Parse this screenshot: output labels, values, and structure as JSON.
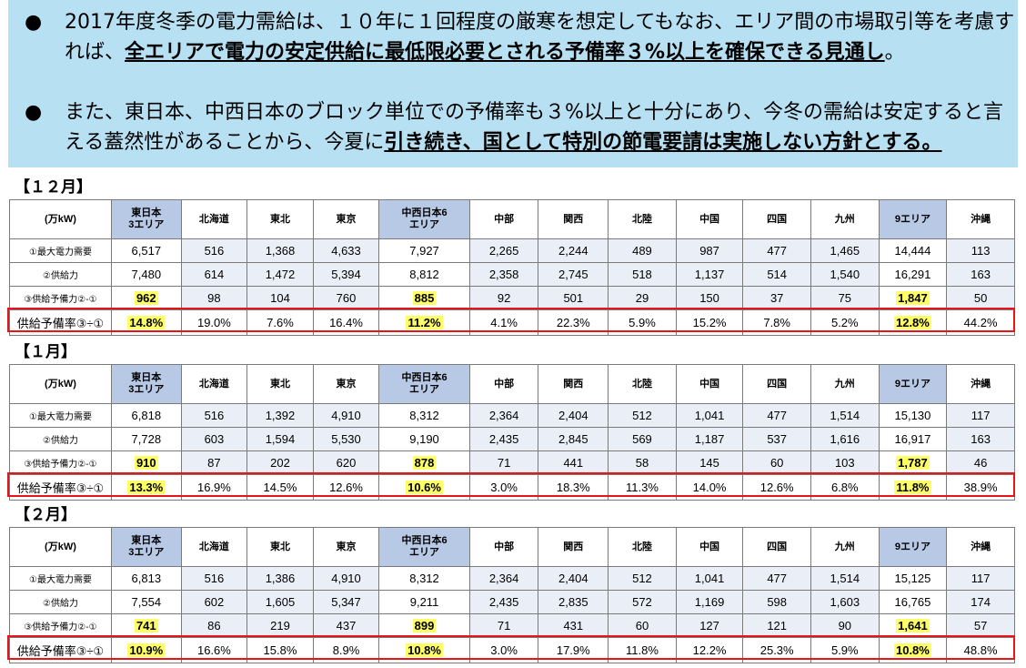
{
  "banner": {
    "bullet1": {
      "dot": "●",
      "pre": "2017年度冬季の電力需給は、１０年に１回程度の厳寒を想定してもなお、エリア間の市場取引等を考慮すれば、",
      "emph": "全エリアで電力の安定供給に最低限必要とされる予備率３%以上を確保できる見通し",
      "post": "。"
    },
    "bullet2": {
      "dot": "●",
      "pre": "また、東日本、中西日本のブロック単位での予備率も３%以上と十分にあり、今冬の需給は安定すると言える蓋然性があることから、今夏に",
      "emph": "引き続き、国として特別の節電要請は実施しない方針とする。",
      "post": ""
    }
  },
  "header_row": {
    "unit": "(万kW)",
    "areas": [
      {
        "l1": "東日本",
        "l2": "3エリア"
      },
      {
        "l1": "北海道",
        "l2": ""
      },
      {
        "l1": "東北",
        "l2": ""
      },
      {
        "l1": "東京",
        "l2": ""
      },
      {
        "l1": "中西日本6",
        "l2": "エリア"
      },
      {
        "l1": "中部",
        "l2": ""
      },
      {
        "l1": "関西",
        "l2": ""
      },
      {
        "l1": "北陸",
        "l2": ""
      },
      {
        "l1": "中国",
        "l2": ""
      },
      {
        "l1": "四国",
        "l2": ""
      },
      {
        "l1": "九州",
        "l2": ""
      },
      {
        "l1": "9エリア",
        "l2": ""
      },
      {
        "l1": "沖縄",
        "l2": ""
      }
    ]
  },
  "row_labels": [
    "①最大電力需要",
    "②供給力",
    "③供給予備力②-①",
    "供給予備率③÷①"
  ],
  "tables": [
    {
      "month": "【１２月】",
      "rows": [
        [
          "6,517",
          "516",
          "1,368",
          "4,633",
          "7,927",
          "2,265",
          "2,244",
          "489",
          "987",
          "477",
          "1,465",
          "14,444",
          "113"
        ],
        [
          "7,480",
          "614",
          "1,472",
          "5,394",
          "8,812",
          "2,358",
          "2,745",
          "518",
          "1,137",
          "514",
          "1,540",
          "16,291",
          "163"
        ],
        [
          "962",
          "98",
          "104",
          "760",
          "885",
          "92",
          "501",
          "29",
          "150",
          "37",
          "75",
          "1,847",
          "50"
        ],
        [
          "14.8%",
          "19.0%",
          "7.6%",
          "16.4%",
          "11.2%",
          "4.1%",
          "22.3%",
          "5.9%",
          "15.2%",
          "7.8%",
          "5.2%",
          "12.8%",
          "44.2%"
        ]
      ]
    },
    {
      "month": "【１月】",
      "rows": [
        [
          "6,818",
          "516",
          "1,392",
          "4,910",
          "8,312",
          "2,364",
          "2,404",
          "512",
          "1,041",
          "477",
          "1,514",
          "15,130",
          "117"
        ],
        [
          "7,728",
          "603",
          "1,594",
          "5,530",
          "9,190",
          "2,435",
          "2,845",
          "569",
          "1,187",
          "537",
          "1,616",
          "16,917",
          "163"
        ],
        [
          "910",
          "87",
          "202",
          "620",
          "878",
          "71",
          "441",
          "58",
          "145",
          "60",
          "103",
          "1,787",
          "46"
        ],
        [
          "13.3%",
          "16.9%",
          "14.5%",
          "12.6%",
          "10.6%",
          "3.0%",
          "18.3%",
          "11.3%",
          "14.0%",
          "12.6%",
          "6.8%",
          "11.8%",
          "38.9%"
        ]
      ]
    },
    {
      "month": "【２月】",
      "rows": [
        [
          "6,813",
          "516",
          "1,386",
          "4,910",
          "8,312",
          "2,364",
          "2,404",
          "512",
          "1,041",
          "477",
          "1,514",
          "15,125",
          "117"
        ],
        [
          "7,554",
          "602",
          "1,605",
          "5,347",
          "9,211",
          "2,435",
          "2,835",
          "572",
          "1,169",
          "598",
          "1,603",
          "16,765",
          "174"
        ],
        [
          "741",
          "86",
          "219",
          "437",
          "899",
          "71",
          "431",
          "60",
          "127",
          "121",
          "90",
          "1,641",
          "57"
        ],
        [
          "10.9%",
          "16.6%",
          "15.8%",
          "8.9%",
          "10.8%",
          "3.0%",
          "17.9%",
          "11.8%",
          "12.2%",
          "25.3%",
          "5.9%",
          "10.8%",
          "48.8%"
        ]
      ]
    }
  ],
  "highlight_color": "#ffff66",
  "box_color": "#e8141a",
  "summary_header_color": "#b8c9e6"
}
